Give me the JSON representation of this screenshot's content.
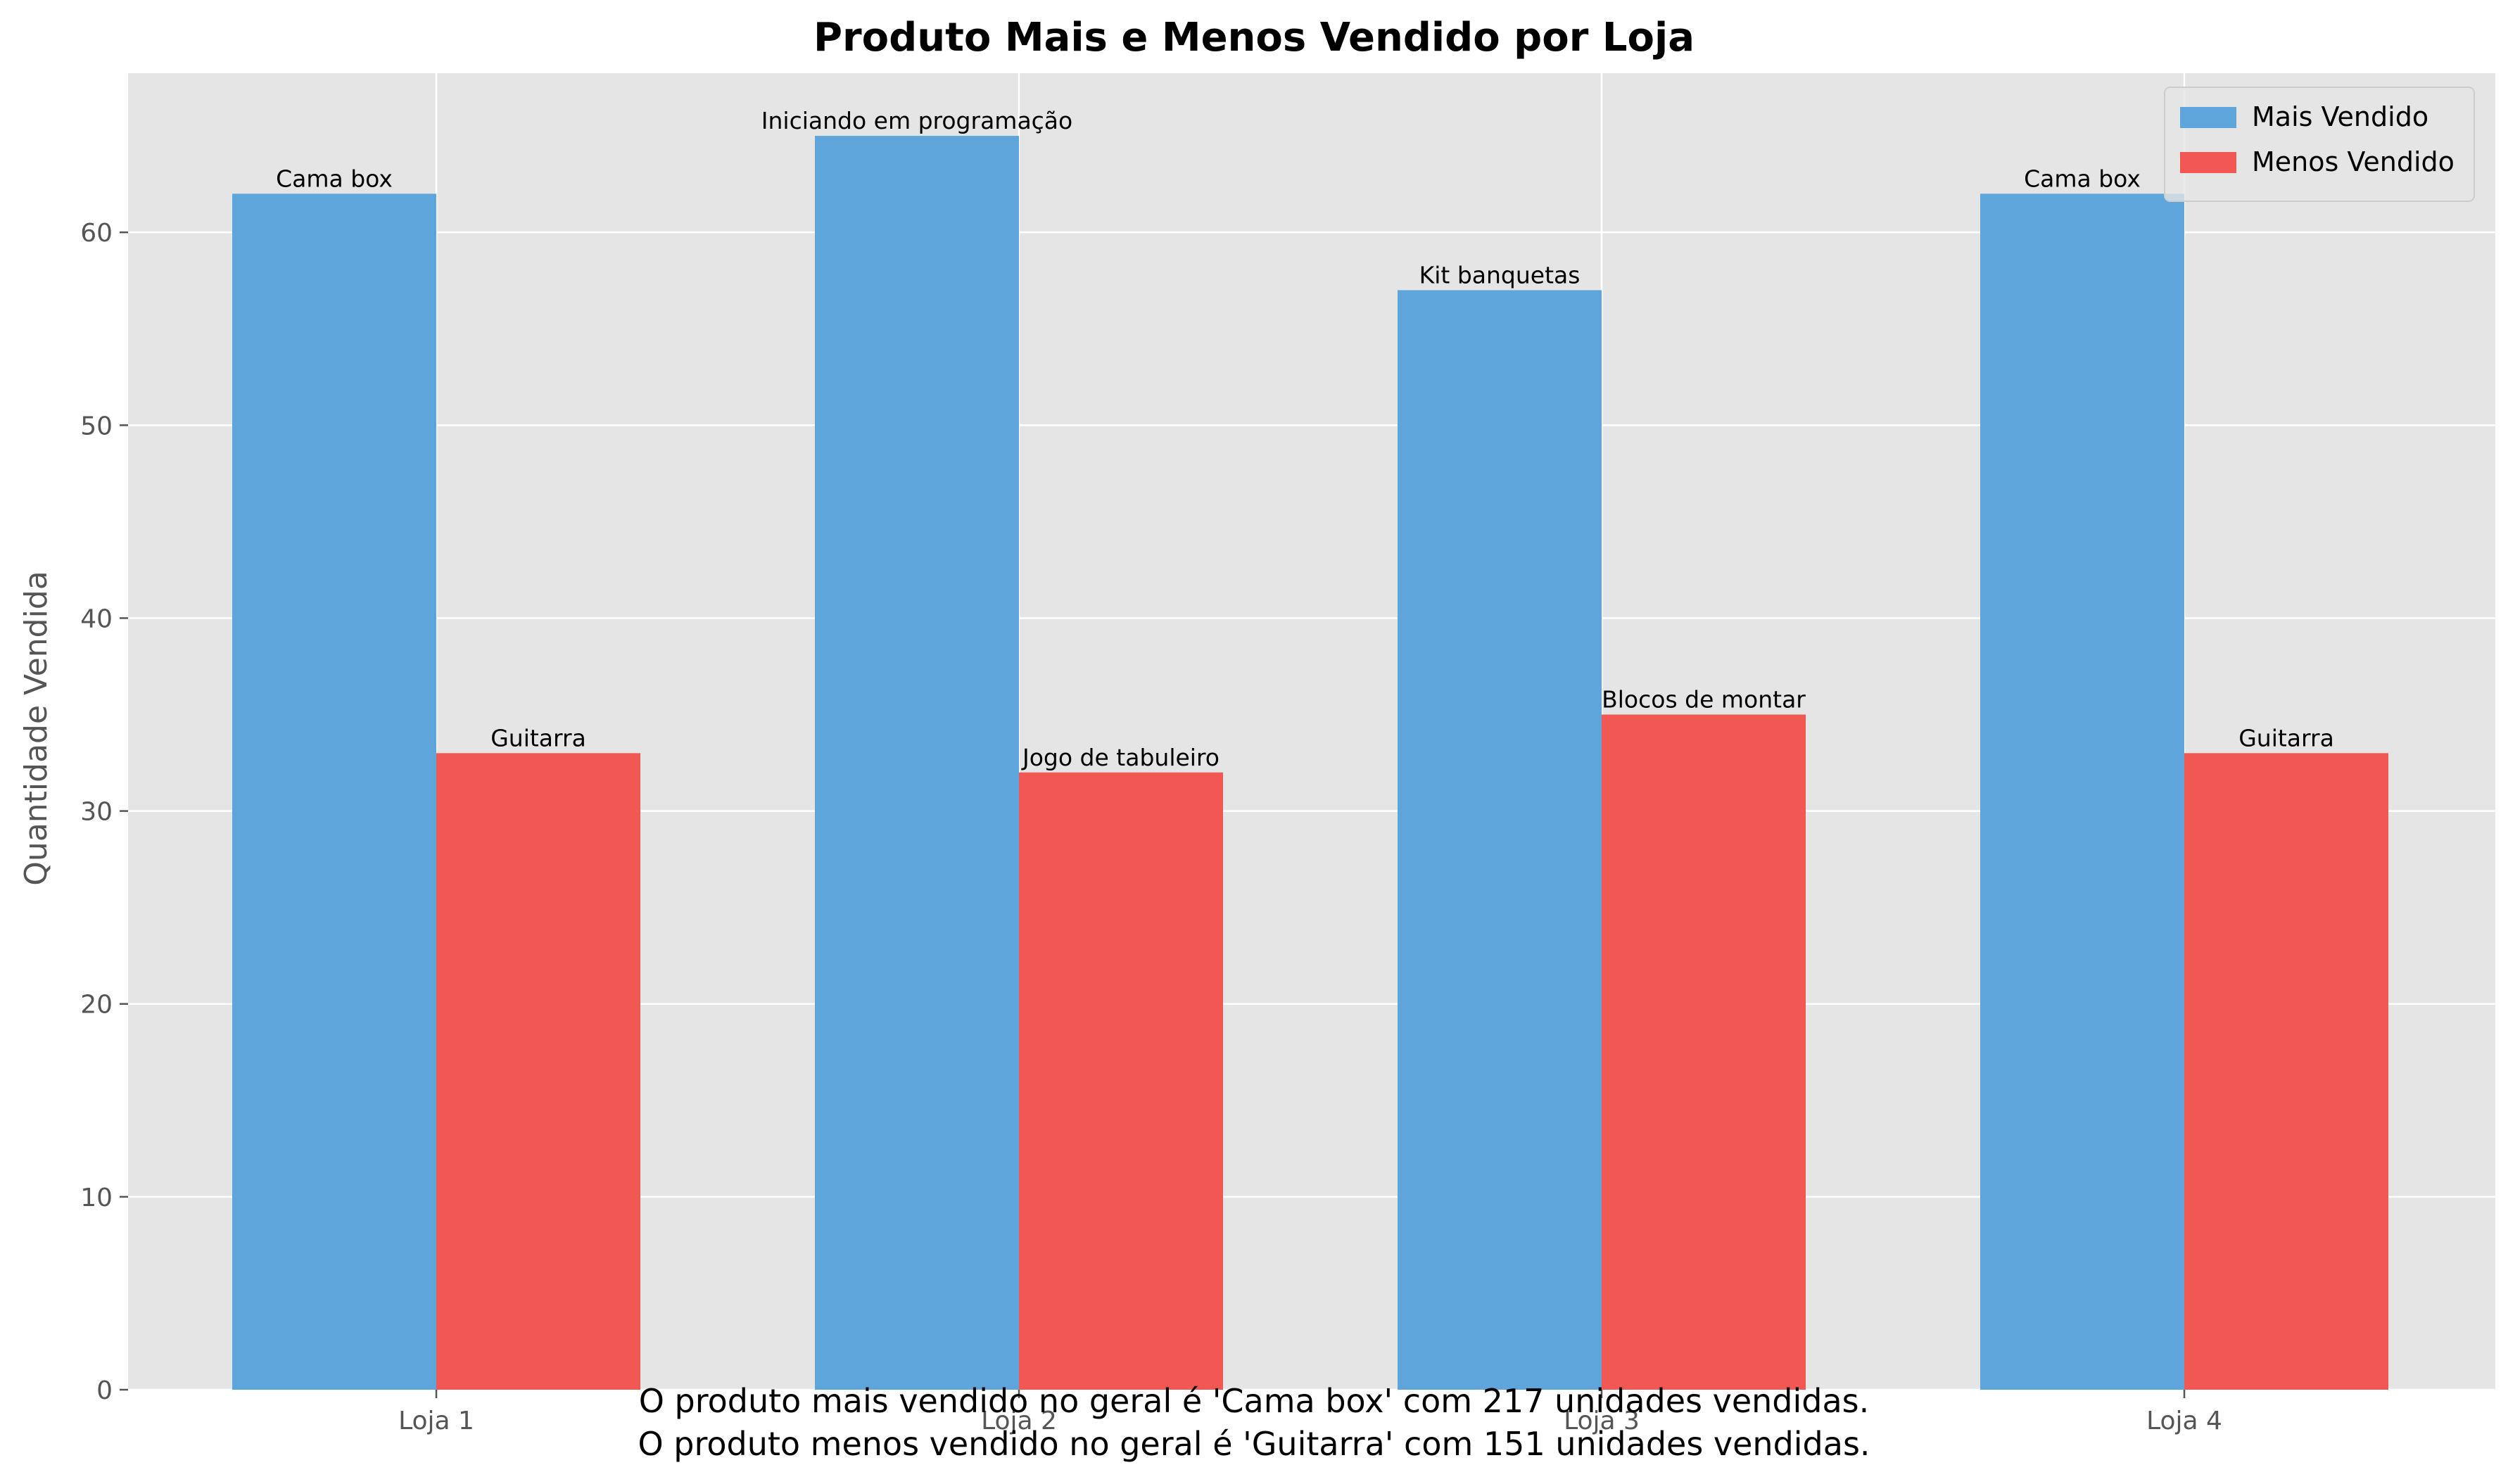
{
  "chart_data": {
    "type": "bar",
    "title": "Produto Mais e Menos Vendido por Loja",
    "xlabel": "",
    "ylabel": "Quantidade Vendida",
    "categories": [
      "Loja 1",
      "Loja 2",
      "Loja 3",
      "Loja 4"
    ],
    "ylim": [
      0,
      68.25
    ],
    "yticks": [
      0,
      10,
      20,
      30,
      40,
      50,
      60
    ],
    "grid": true,
    "legend_position": "top-right",
    "series": [
      {
        "name": "Mais Vendido",
        "color": "#5da5da",
        "values": [
          62,
          65,
          57,
          62
        ],
        "labels": [
          "Cama box",
          "Iniciando em programação",
          "Kit banquetas",
          "Cama box"
        ]
      },
      {
        "name": "Menos Vendido",
        "color": "#f15854",
        "values": [
          33,
          32,
          35,
          33
        ],
        "labels": [
          "Guitarra",
          "Jogo de tabuleiro",
          "Blocos de montar",
          "Guitarra"
        ]
      }
    ],
    "annotations": [
      "O produto mais vendido no geral é 'Cama box' com 217 unidades vendidas.",
      "O produto menos vendido no geral é 'Guitarra' com 151 unidades vendidas."
    ]
  },
  "colors": {
    "plot_background": "#e5e5e5",
    "grid": "#ffffff",
    "tick_text": "#555555",
    "text": "#000000"
  }
}
